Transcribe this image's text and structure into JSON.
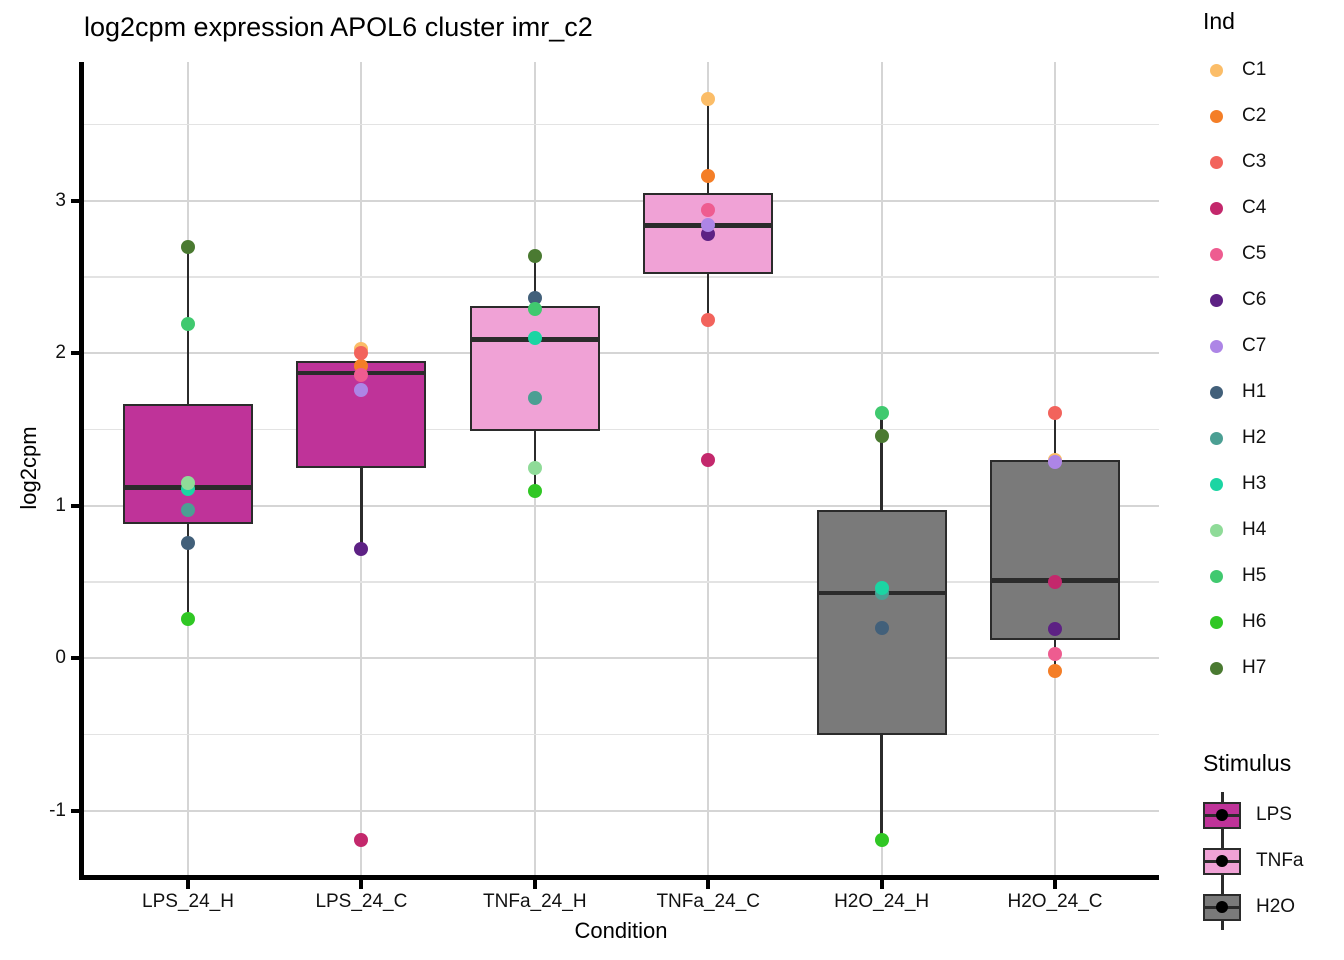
{
  "chart_data": {
    "type": "boxplot",
    "title": "log2cpm expression APOL6 cluster imr_c2",
    "xlabel": "Condition",
    "ylabel": "log2cpm",
    "ylim": [
      -1.42,
      3.91
    ],
    "yticks": [
      3,
      2,
      1,
      0,
      -1
    ],
    "minor_gridlines": [
      3.5,
      2.5,
      1.5,
      0.5,
      -0.5
    ],
    "grid": true,
    "legend_position": "right",
    "categories": [
      "LPS_24_H",
      "LPS_24_C",
      "TNFa_24_H",
      "TNFa_24_C",
      "H2O_24_H",
      "H2O_24_C"
    ],
    "boxes": [
      {
        "category": "LPS_24_H",
        "stimulus": "LPS",
        "q1": 0.88,
        "median": 1.12,
        "q3": 1.67,
        "whisker_low": 0.26,
        "whisker_high": 2.7,
        "points": [
          {
            "ind": "H1",
            "value": 0.76
          },
          {
            "ind": "H2",
            "value": 0.97
          },
          {
            "ind": "H3",
            "value": 1.11
          },
          {
            "ind": "H4",
            "value": 1.15
          },
          {
            "ind": "H5",
            "value": 2.19
          },
          {
            "ind": "H6",
            "value": 0.26
          },
          {
            "ind": "H7",
            "value": 2.7
          }
        ]
      },
      {
        "category": "LPS_24_C",
        "stimulus": "LPS",
        "q1": 1.25,
        "median": 1.87,
        "q3": 1.95,
        "whisker_low": 0.72,
        "whisker_high": 2.03,
        "points": [
          {
            "ind": "C1",
            "value": 2.03
          },
          {
            "ind": "C2",
            "value": 1.92
          },
          {
            "ind": "C3",
            "value": 2.0
          },
          {
            "ind": "C4",
            "value": -1.19
          },
          {
            "ind": "C5",
            "value": 1.86
          },
          {
            "ind": "C6",
            "value": 0.72
          },
          {
            "ind": "C7",
            "value": 1.76
          }
        ]
      },
      {
        "category": "TNFa_24_H",
        "stimulus": "TNFa",
        "q1": 1.49,
        "median": 2.09,
        "q3": 2.31,
        "whisker_low": 1.1,
        "whisker_high": 2.64,
        "points": [
          {
            "ind": "H1",
            "value": 2.36
          },
          {
            "ind": "H2",
            "value": 1.71
          },
          {
            "ind": "H3",
            "value": 2.1
          },
          {
            "ind": "H4",
            "value": 1.25
          },
          {
            "ind": "H5",
            "value": 2.29
          },
          {
            "ind": "H6",
            "value": 1.1
          },
          {
            "ind": "H7",
            "value": 2.64
          }
        ]
      },
      {
        "category": "TNFa_24_C",
        "stimulus": "TNFa",
        "q1": 2.52,
        "median": 2.84,
        "q3": 3.05,
        "whisker_low": 2.22,
        "whisker_high": 3.67,
        "points": [
          {
            "ind": "C1",
            "value": 3.67
          },
          {
            "ind": "C2",
            "value": 3.16
          },
          {
            "ind": "C3",
            "value": 2.22
          },
          {
            "ind": "C4",
            "value": 1.3
          },
          {
            "ind": "C5",
            "value": 2.94
          },
          {
            "ind": "C6",
            "value": 2.78
          },
          {
            "ind": "C7",
            "value": 2.84
          }
        ]
      },
      {
        "category": "H2O_24_H",
        "stimulus": "H2O",
        "q1": -0.5,
        "median": 0.43,
        "q3": 0.97,
        "whisker_low": -1.19,
        "whisker_high": 1.61,
        "points": [
          {
            "ind": "H1",
            "value": 0.2
          },
          {
            "ind": "H2",
            "value": 0.43
          },
          {
            "ind": "H3",
            "value": 0.46
          },
          {
            "ind": "H5",
            "value": 1.61
          },
          {
            "ind": "H6",
            "value": -1.19
          },
          {
            "ind": "H7",
            "value": 1.46
          }
        ]
      },
      {
        "category": "H2O_24_C",
        "stimulus": "H2O",
        "q1": 0.12,
        "median": 0.51,
        "q3": 1.3,
        "whisker_low": -0.08,
        "whisker_high": 1.61,
        "points": [
          {
            "ind": "C1",
            "value": 1.3
          },
          {
            "ind": "C2",
            "value": -0.08
          },
          {
            "ind": "C3",
            "value": 1.61
          },
          {
            "ind": "C4",
            "value": 0.5
          },
          {
            "ind": "C5",
            "value": 0.03
          },
          {
            "ind": "C6",
            "value": 0.19
          },
          {
            "ind": "C7",
            "value": 1.29
          }
        ]
      }
    ],
    "legend": {
      "ind": {
        "title": "Ind",
        "items": [
          {
            "label": "C1",
            "color": "#FBBD68"
          },
          {
            "label": "C2",
            "color": "#F47E27"
          },
          {
            "label": "C3",
            "color": "#F2635C"
          },
          {
            "label": "C4",
            "color": "#C3286C"
          },
          {
            "label": "C5",
            "color": "#EE5C90"
          },
          {
            "label": "C6",
            "color": "#5D2184"
          },
          {
            "label": "C7",
            "color": "#AD85E6"
          },
          {
            "label": "H1",
            "color": "#42607A"
          },
          {
            "label": "H2",
            "color": "#4B9F93"
          },
          {
            "label": "H3",
            "color": "#1BD5A3"
          },
          {
            "label": "H4",
            "color": "#8FDB98"
          },
          {
            "label": "H5",
            "color": "#40C96F"
          },
          {
            "label": "H6",
            "color": "#30C724"
          },
          {
            "label": "H7",
            "color": "#4A7A31"
          }
        ]
      },
      "stimulus": {
        "title": "Stimulus",
        "items": [
          {
            "label": "LPS",
            "fill": "#BF3399"
          },
          {
            "label": "TNFa",
            "fill": "#F0A2D6"
          },
          {
            "label": "H2O",
            "fill": "#7A7A7A"
          }
        ]
      }
    },
    "colors": {
      "box_stroke": "#2B2B2B",
      "axis": "#000000",
      "grid_major": "#D5D5D5",
      "grid_minor": "#E3E3E3",
      "background": "#FFFFFF"
    }
  }
}
